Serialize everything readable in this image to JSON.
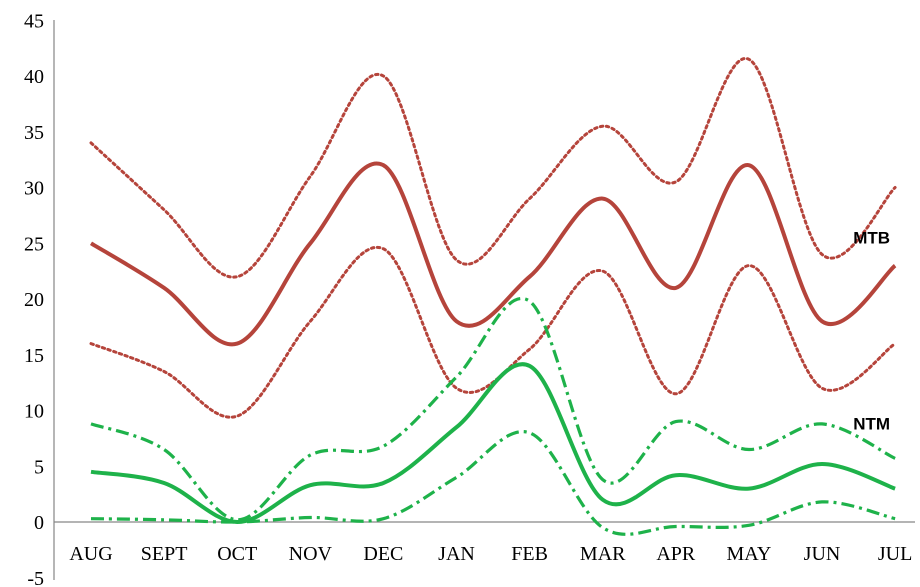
{
  "chart_data": {
    "type": "line",
    "categories": [
      "AUG",
      "SEPT",
      "OCT",
      "NOV",
      "DEC",
      "JAN",
      "FEB",
      "MAR",
      "APR",
      "MAY",
      "JUN",
      "JUL"
    ],
    "ylim": [
      -5,
      45
    ],
    "yticks": [
      -5,
      0,
      5,
      10,
      15,
      20,
      25,
      30,
      35,
      40,
      45
    ],
    "grid": false,
    "series": [
      {
        "id": "mtb",
        "values": [
          25,
          21,
          16,
          25,
          32,
          18,
          22,
          29,
          21,
          32,
          18,
          23
        ],
        "color": "#b5443b",
        "style": "solid"
      },
      {
        "id": "mtb-upper",
        "values": [
          34,
          28,
          22,
          31,
          40,
          23.5,
          29,
          35.5,
          30.5,
          41.5,
          24,
          30
        ],
        "color": "#b5443b",
        "style": "dotted"
      },
      {
        "id": "mtb-lower",
        "values": [
          16,
          13.5,
          9.5,
          18,
          24.5,
          12,
          15.5,
          22.5,
          11.5,
          23,
          12,
          16
        ],
        "color": "#b5443b",
        "style": "dotted"
      },
      {
        "id": "ntm",
        "values": [
          4.5,
          3.5,
          0,
          3.3,
          3.5,
          8.5,
          14,
          2,
          4.2,
          3,
          5.2,
          3
        ],
        "color": "#1eb24a",
        "style": "solid"
      },
      {
        "id": "ntm-upper",
        "values": [
          8.8,
          6.5,
          0.2,
          6,
          6.8,
          13,
          19.8,
          3.8,
          9,
          6.5,
          8.8,
          5.7
        ],
        "color": "#1eb24a",
        "style": "dashdot"
      },
      {
        "id": "ntm-lower",
        "values": [
          0.3,
          0.2,
          0,
          0.4,
          0.3,
          4,
          8,
          -0.5,
          -0.4,
          -0.3,
          1.8,
          0.3
        ],
        "color": "#1eb24a",
        "style": "dashdot"
      }
    ],
    "annotations": [
      {
        "text": "MTB",
        "category": "JUL",
        "value": 25,
        "color": "#000000"
      },
      {
        "text": "NTM",
        "category": "JUL",
        "value": 8.3,
        "color": "#000000"
      }
    ]
  }
}
